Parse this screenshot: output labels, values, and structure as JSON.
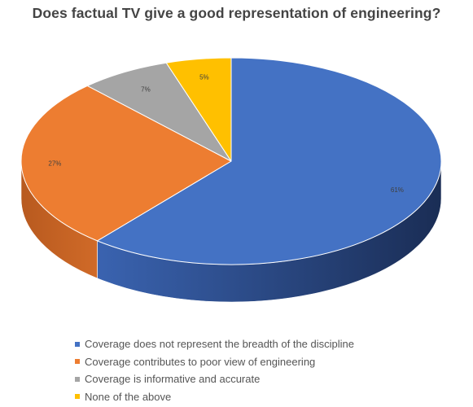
{
  "chart_data": {
    "type": "pie",
    "title": "Does factual TV give a good representation of engineering?",
    "slices": [
      {
        "label": "Coverage does not represent the breadth of the discipline",
        "value": 61,
        "data_label": "61%",
        "color": "#4472C4"
      },
      {
        "label": "Coverage contributes to poor view of engineering",
        "value": 27,
        "data_label": "27%",
        "color": "#ED7D31"
      },
      {
        "label": "Coverage is informative and accurate",
        "value": 7,
        "data_label": "7%",
        "color": "#A5A5A5"
      },
      {
        "label": "None of the above",
        "value": 5,
        "data_label": "5%",
        "color": "#FFC000"
      }
    ],
    "style": "3d",
    "legend_position": "bottom"
  }
}
